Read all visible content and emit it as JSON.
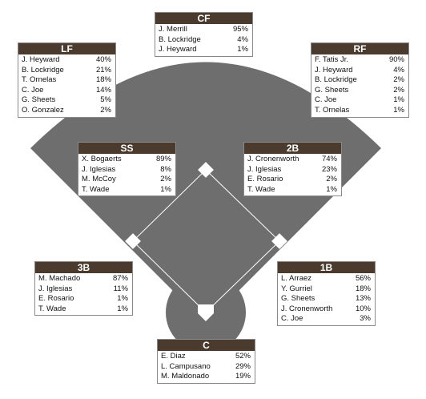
{
  "colors": {
    "field": "#6e6e6e",
    "header": "#4a3b2e",
    "base": "#ffffff",
    "border": "#8a8a8a"
  },
  "positions": {
    "cf": {
      "title": "CF",
      "players": [
        {
          "name": "J. Merrill",
          "pct": "95%"
        },
        {
          "name": "B. Lockridge",
          "pct": "4%"
        },
        {
          "name": "J. Heyward",
          "pct": "1%"
        }
      ]
    },
    "lf": {
      "title": "LF",
      "players": [
        {
          "name": "J. Heyward",
          "pct": "40%"
        },
        {
          "name": "B. Lockridge",
          "pct": "21%"
        },
        {
          "name": "T. Ornelas",
          "pct": "18%"
        },
        {
          "name": "C. Joe",
          "pct": "14%"
        },
        {
          "name": "G. Sheets",
          "pct": "5%"
        },
        {
          "name": "O. Gonzalez",
          "pct": "2%"
        }
      ]
    },
    "rf": {
      "title": "RF",
      "players": [
        {
          "name": "F. Tatis Jr.",
          "pct": "90%"
        },
        {
          "name": "J. Heyward",
          "pct": "4%"
        },
        {
          "name": "B. Lockridge",
          "pct": "2%"
        },
        {
          "name": "G. Sheets",
          "pct": "2%"
        },
        {
          "name": "C. Joe",
          "pct": "1%"
        },
        {
          "name": "T. Ornelas",
          "pct": "1%"
        }
      ]
    },
    "ss": {
      "title": "SS",
      "players": [
        {
          "name": "X. Bogaerts",
          "pct": "89%"
        },
        {
          "name": "J. Iglesias",
          "pct": "8%"
        },
        {
          "name": "M. McCoy",
          "pct": "2%"
        },
        {
          "name": "T. Wade",
          "pct": "1%"
        }
      ]
    },
    "2b": {
      "title": "2B",
      "players": [
        {
          "name": "J. Cronenworth",
          "pct": "74%"
        },
        {
          "name": "J. Iglesias",
          "pct": "23%"
        },
        {
          "name": "E. Rosario",
          "pct": "2%"
        },
        {
          "name": "T. Wade",
          "pct": "1%"
        }
      ]
    },
    "3b": {
      "title": "3B",
      "players": [
        {
          "name": "M. Machado",
          "pct": "87%"
        },
        {
          "name": "J. Iglesias",
          "pct": "11%"
        },
        {
          "name": "E. Rosario",
          "pct": "1%"
        },
        {
          "name": "T. Wade",
          "pct": "1%"
        }
      ]
    },
    "1b": {
      "title": "1B",
      "players": [
        {
          "name": "L. Arraez",
          "pct": "56%"
        },
        {
          "name": "Y. Gurriel",
          "pct": "18%"
        },
        {
          "name": "G. Sheets",
          "pct": "13%"
        },
        {
          "name": "J. Cronenworth",
          "pct": "10%"
        },
        {
          "name": "C. Joe",
          "pct": "3%"
        }
      ]
    },
    "c": {
      "title": "C",
      "players": [
        {
          "name": "E. Diaz",
          "pct": "52%"
        },
        {
          "name": "L. Campusano",
          "pct": "29%"
        },
        {
          "name": "M. Maldonado",
          "pct": "19%"
        }
      ]
    }
  }
}
